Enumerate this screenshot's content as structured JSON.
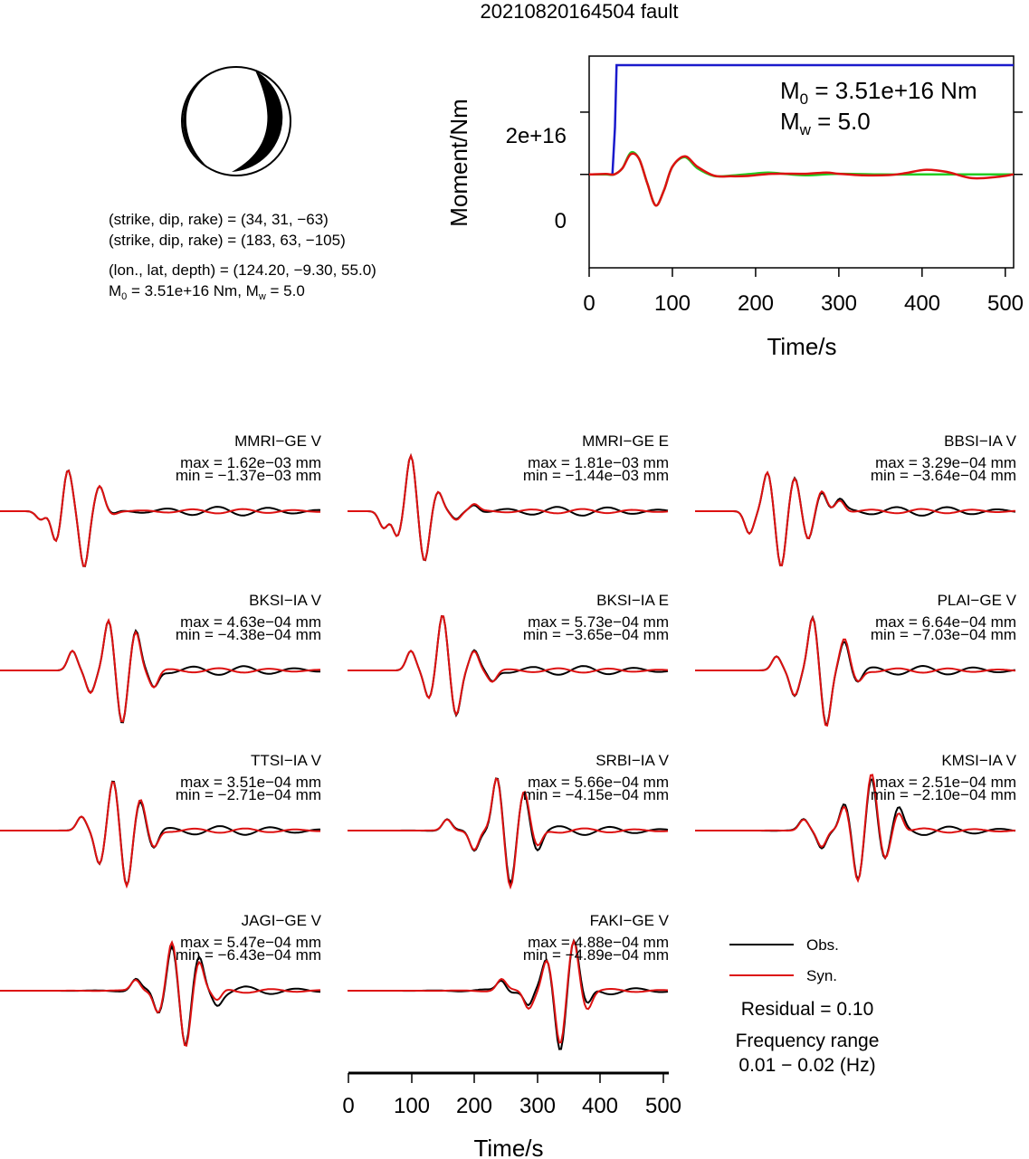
{
  "title": "20210820164504 fault",
  "mechanism": {
    "plane1": "(strike, dip, rake) = (34, 31, −63)",
    "plane2": "(strike, dip, rake) = (183, 63, −105)",
    "location": "(lon., lat, depth) = (124.20, −9.30, 55.0)",
    "moment_prefix": "M",
    "moment_sub": "0",
    "moment_mid": " = 3.51e+16 Nm, M",
    "moment_sub2": "w",
    "moment_tail": " = 5.0"
  },
  "stf": {
    "ylabel": "Moment/Nm",
    "xlabel": "Time/s",
    "xticks": [
      "0",
      "100",
      "200",
      "300",
      "400",
      "500"
    ],
    "yticks": [
      "0",
      "2e+16"
    ],
    "m0_prefix": "M",
    "m0_sub": "0",
    "m0_value": " = 3.51e+16 Nm",
    "mw_prefix": "M",
    "mw_sub": "w",
    "mw_value": " = 5.0"
  },
  "waveforms": {
    "panels": [
      {
        "station": "MMRI−GE V",
        "max": "max = 1.62e−03 mm",
        "min": "min = −1.37e−03 mm"
      },
      {
        "station": "MMRI−GE E",
        "max": "max = 1.81e−03 mm",
        "min": "min = −1.44e−03 mm"
      },
      {
        "station": "BBSI−IA V",
        "max": "max = 3.29e−04 mm",
        "min": "min = −3.64e−04 mm"
      },
      {
        "station": "BKSI−IA V",
        "max": "max = 4.63e−04 mm",
        "min": "min = −4.38e−04 mm"
      },
      {
        "station": "BKSI−IA E",
        "max": "max = 5.73e−04 mm",
        "min": "min = −3.65e−04 mm"
      },
      {
        "station": "PLAI−GE V",
        "max": "max = 6.64e−04 mm",
        "min": "min = −7.03e−04 mm"
      },
      {
        "station": "TTSI−IA V",
        "max": "max = 3.51e−04 mm",
        "min": "min = −2.71e−04 mm"
      },
      {
        "station": "SRBI−IA V",
        "max": "max = 5.66e−04 mm",
        "min": "min = −4.15e−04 mm"
      },
      {
        "station": "KMSI−IA V",
        "max": "max = 2.51e−04 mm",
        "min": "min = −2.10e−04 mm"
      },
      {
        "station": "JAGI−GE V",
        "max": "max = 5.47e−04 mm",
        "min": "min = −6.43e−04 mm"
      },
      {
        "station": "FAKI−GE V",
        "max": "max = 4.88e−04 mm",
        "min": "min = −4.89e−04 mm"
      }
    ],
    "xlabel": "Time/s",
    "xticks": [
      "0",
      "100",
      "200",
      "300",
      "400",
      "500"
    ]
  },
  "legend": {
    "obs_label": "Obs.",
    "syn_label": "Syn.",
    "residual": "Residual = 0.10",
    "freq_title": "Frequency range",
    "freq_value": "0.01 − 0.02 (Hz)"
  },
  "colors": {
    "obs": "#000000",
    "syn": "#dd1111",
    "stf_cumulative": "#1a1acc",
    "stf_rate_a": "#22cc22",
    "stf_rate_b": "#dd1111"
  },
  "chart_data": [
    {
      "type": "line",
      "title": "20210820164504 fault",
      "xlabel": "Time/s",
      "ylabel": "Moment/Nm",
      "xlim": [
        0,
        510
      ],
      "ylim": [
        -3e+16,
        3.8e+16
      ],
      "series": [
        {
          "color": "blue",
          "x": [
            0,
            28,
            31,
            33,
            510
          ],
          "y": [
            0,
            0,
            1.5e+16,
            3.51e+16,
            3.51e+16
          ]
        },
        {
          "color": "green",
          "x": [
            0,
            20,
            30,
            40,
            50,
            60,
            70,
            80,
            90,
            100,
            115,
            130,
            150,
            170,
            200,
            215,
            230,
            260,
            300,
            350,
            400,
            450,
            510
          ],
          "y": [
            0,
            0,
            0,
            2000000000000000.0,
            7000000000000000.0,
            5000000000000000.0,
            -3000000000000000.0,
            -1e+16,
            -5000000000000000.0,
            2500000000000000.0,
            5500000000000000.0,
            2000000000000000.0,
            -500000000000000.0,
            -400000000000000.0,
            300000000000000.0,
            600000000000000.0,
            300000000000000.0,
            -300000000000000.0,
            200000000000000.0,
            0,
            0,
            0,
            0
          ]
        },
        {
          "color": "red",
          "x": [
            0,
            20,
            30,
            40,
            50,
            60,
            70,
            80,
            90,
            100,
            115,
            130,
            150,
            170,
            190,
            220,
            260,
            285,
            300,
            330,
            360,
            380,
            405,
            430,
            460,
            490,
            510
          ],
          "y": [
            0,
            150000000000000.0,
            0,
            2000000000000000.0,
            6500000000000000.0,
            5000000000000000.0,
            -3000000000000000.0,
            -1e+16,
            -5000000000000000.0,
            2500000000000000.0,
            5800000000000000.0,
            2500000000000000.0,
            -400000000000000.0,
            -600000000000000.0,
            -500000000000000.0,
            200000000000000.0,
            200000000000000.0,
            600000000000000.0,
            200000000000000.0,
            -300000000000000.0,
            -200000000000000.0,
            400000000000000.0,
            1500000000000000.0,
            800000000000000.0,
            -1200000000000000.0,
            -800000000000000.0,
            0
          ]
        }
      ]
    },
    {
      "type": "line",
      "title": "",
      "xlabel": "Time/s",
      "ylabel": "",
      "xlim": [
        0,
        510
      ],
      "series": [
        {
          "name": "Obs.",
          "color": "black"
        },
        {
          "name": "Syn.",
          "color": "red"
        }
      ],
      "panels": [
        {
          "station": "MMRI−GE V",
          "max_mm": 0.00162,
          "min_mm": -0.00137
        },
        {
          "station": "MMRI−GE E",
          "max_mm": 0.00181,
          "min_mm": -0.00144
        },
        {
          "station": "BBSI−IA V",
          "max_mm": 0.000329,
          "min_mm": -0.000364
        },
        {
          "station": "BKSI−IA V",
          "max_mm": 0.000463,
          "min_mm": -0.000438
        },
        {
          "station": "BKSI−IA E",
          "max_mm": 0.000573,
          "min_mm": -0.000365
        },
        {
          "station": "PLAI−GE V",
          "max_mm": 0.000664,
          "min_mm": -0.000703
        },
        {
          "station": "TTSI−IA V",
          "max_mm": 0.000351,
          "min_mm": -0.000271
        },
        {
          "station": "SRBI−IA V",
          "max_mm": 0.000566,
          "min_mm": -0.000415
        },
        {
          "station": "KMSI−IA V",
          "max_mm": 0.000251,
          "min_mm": -0.00021
        },
        {
          "station": "JAGI−GE V",
          "max_mm": 0.000547,
          "min_mm": -0.000643
        },
        {
          "station": "FAKI−GE V",
          "max_mm": 0.000488,
          "min_mm": -0.000489
        }
      ],
      "residual": 0.1,
      "frequency_range_hz": [
        0.01,
        0.02
      ]
    }
  ]
}
